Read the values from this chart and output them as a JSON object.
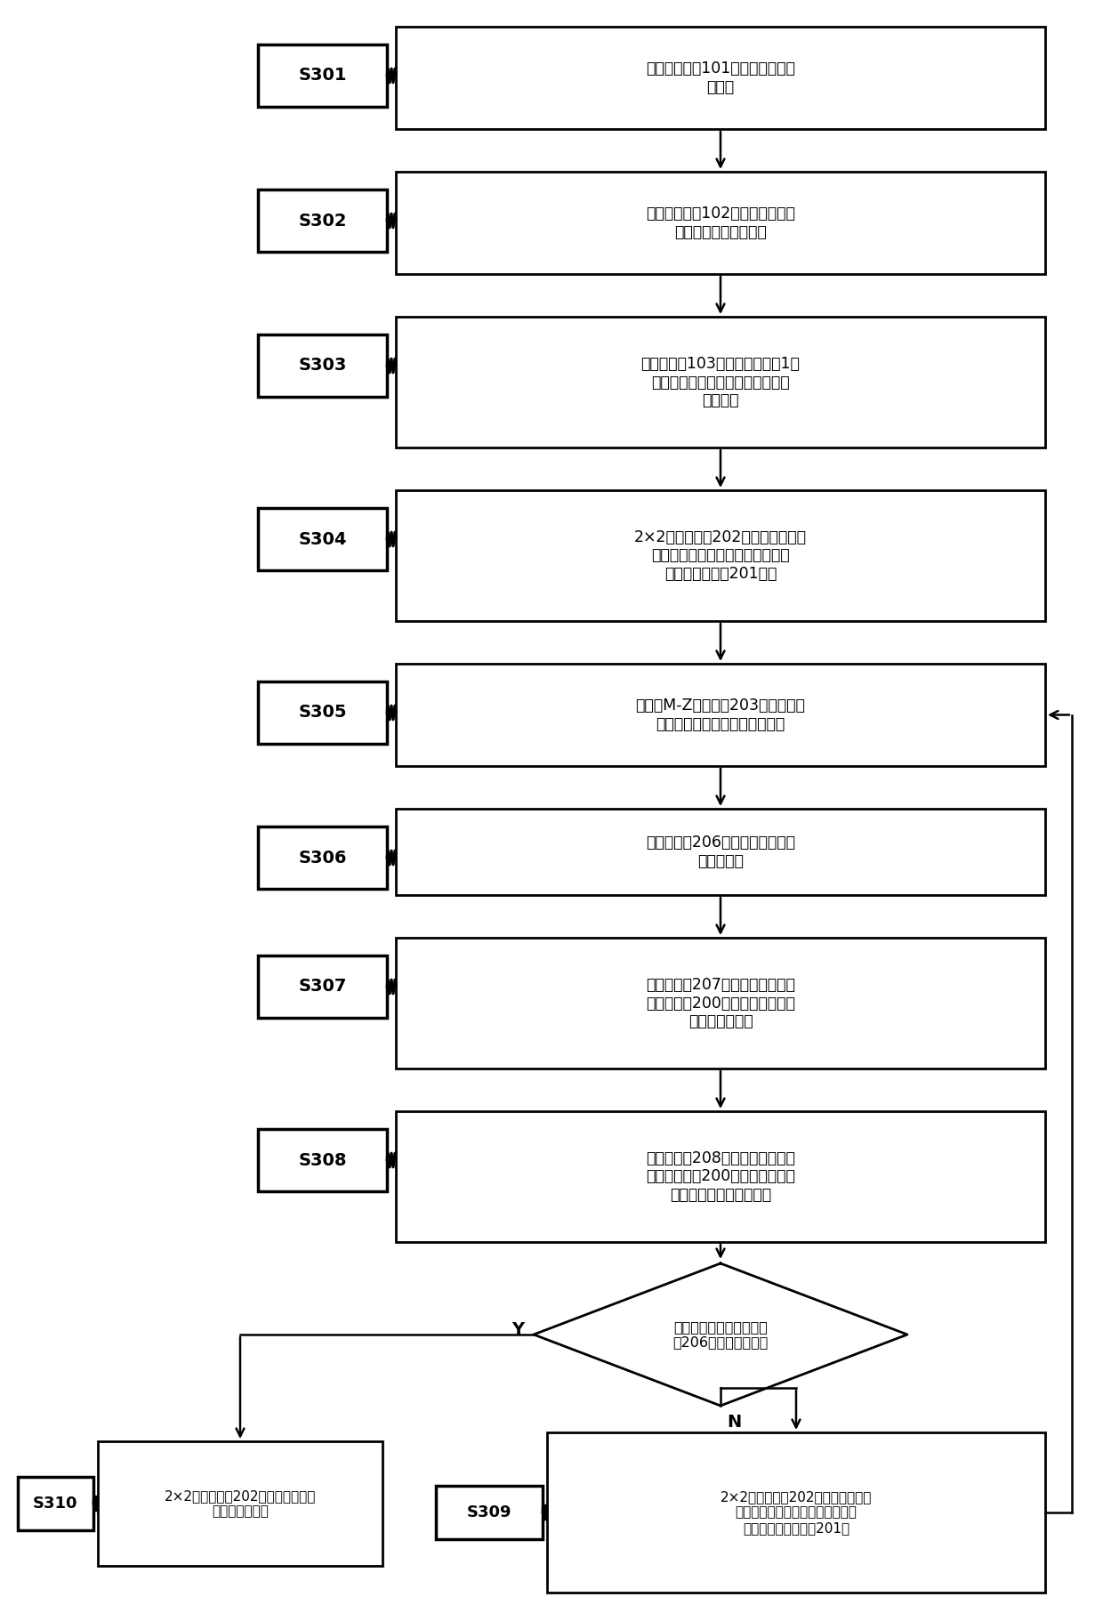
{
  "bg_color": "#ffffff",
  "steps": [
    {
      "id": "S301",
      "label": "直流激光器（101）输出单波长直\n流激光"
    },
    {
      "id": "S302",
      "label": "电光调制器（102）对单波长直流\n激光进行载波抑制调制"
    },
    {
      "id": "S303",
      "label": "光滤波器（103）取出需要的＋1阶\n调制边带，作为波长可连续调谐的\n直流激光"
    },
    {
      "id": "S304",
      "label": "2×2光耦合器（202）将输入的波长\n可连续调谐的直流激光的一部分功\n率耦合到光纤（201）中"
    },
    {
      "id": "S305",
      "label": "双平行M-Z调制器（203）对输入的\n光信号进行载波抑制单边带调制"
    },
    {
      "id": "S306",
      "label": "光滤波器（206）进一步消除残余\n的无用边带"
    },
    {
      "id": "S307",
      "label": "光放大器（207）补偿多波长激光\n生成单元（200）中所有光器件引\n入的光功率损耗"
    },
    {
      "id": "S308",
      "label": "光隔离器（208）保证多波长激光\n器生成单元（200）中，环形腔内\n的激光沿设计的方向传输"
    }
  ],
  "diamond_text": "多波长激光覆盖光滤波器\n（206）的整个通带？",
  "s309_label": "S309",
  "s310_label": "S310",
  "s309_text": "2×2光耦合器（202）将循环后的光\n信号与新输入的激光合并，并耦合\n一部分功率到光纤（201）",
  "s310_text": "2×2光耦合器（202）将稳定的多波\n长激光耦合输出",
  "yes_label": "Y",
  "no_label": "N"
}
